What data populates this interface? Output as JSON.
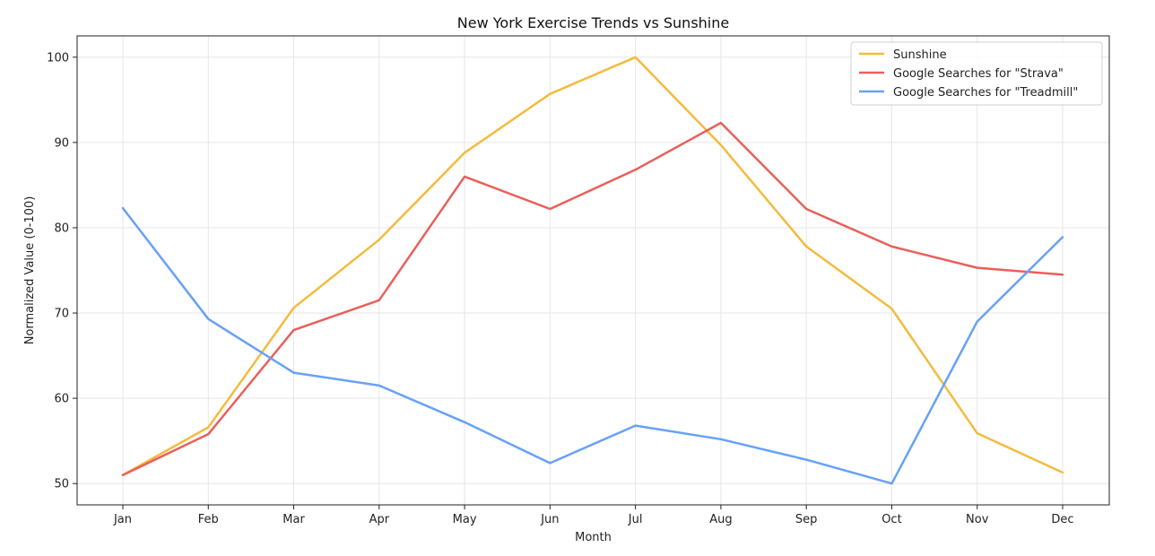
{
  "chart_data": {
    "type": "line",
    "title": "New York Exercise Trends vs Sunshine",
    "xlabel": "Month",
    "ylabel": "Normalized Value (0-100)",
    "categories": [
      "Jan",
      "Feb",
      "Mar",
      "Apr",
      "May",
      "Jun",
      "Jul",
      "Aug",
      "Sep",
      "Oct",
      "Nov",
      "Dec"
    ],
    "ylim": [
      47.5,
      102.5
    ],
    "yticks": [
      50,
      60,
      70,
      80,
      90,
      100
    ],
    "grid": true,
    "legend_position": "top-right",
    "series": [
      {
        "name": "Sunshine",
        "color": "#f4bb3e",
        "values": [
          51.0,
          56.6,
          70.6,
          78.6,
          88.8,
          95.7,
          100.0,
          89.7,
          77.8,
          70.5,
          55.9,
          51.3
        ]
      },
      {
        "name": "Google Searches for \"Strava\"",
        "color": "#e8605a",
        "values": [
          51.0,
          55.8,
          68.0,
          71.5,
          86.0,
          82.2,
          86.8,
          92.3,
          82.2,
          77.8,
          75.3,
          74.5
        ]
      },
      {
        "name": "Google Searches for \"Treadmill\"",
        "color": "#67a1f8",
        "values": [
          82.3,
          69.3,
          63.0,
          61.5,
          57.2,
          52.4,
          56.8,
          55.2,
          52.8,
          50.0,
          69.0,
          78.9
        ]
      }
    ]
  }
}
